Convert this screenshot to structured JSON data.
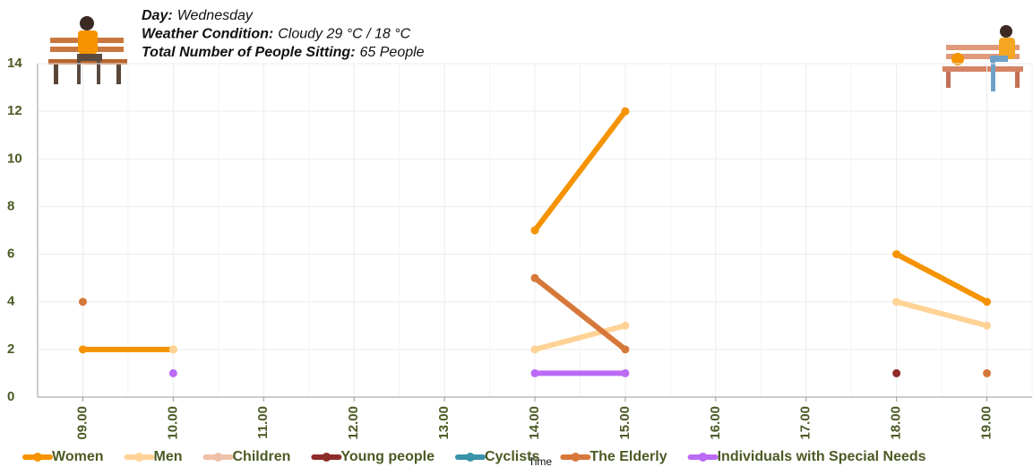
{
  "header": {
    "lines": [
      {
        "label": "Day:",
        "value": "Wednesday"
      },
      {
        "label": "Weather Condition:",
        "value": "Cloudy 29 °C / 18 °C"
      },
      {
        "label": "Total Number of People Sitting:",
        "value": "65 People"
      }
    ]
  },
  "chart_data": {
    "type": "line",
    "x_label": "Time",
    "categories": [
      "09.00",
      "10.00",
      "11.00",
      "12.00",
      "13.00",
      "14.00",
      "15.00",
      "16.00",
      "17.00",
      "18.00",
      "19.00"
    ],
    "ylim": [
      0,
      14
    ],
    "yticks": [
      0,
      2,
      4,
      6,
      8,
      10,
      12,
      14
    ],
    "grid": true,
    "series": [
      {
        "name": "Women",
        "color": "#f59300",
        "values": [
          2,
          2,
          null,
          null,
          null,
          7,
          12,
          null,
          null,
          6,
          4
        ]
      },
      {
        "name": "Men",
        "color": "#ffd396",
        "values": [
          null,
          2,
          null,
          null,
          null,
          2,
          3,
          null,
          null,
          4,
          3
        ]
      },
      {
        "name": "Children",
        "color": "#efc1a8",
        "values": [
          null,
          null,
          null,
          null,
          null,
          null,
          null,
          null,
          null,
          null,
          null
        ]
      },
      {
        "name": "Young people",
        "color": "#8e2c2a",
        "values": [
          null,
          null,
          null,
          null,
          null,
          null,
          null,
          null,
          null,
          1,
          null
        ]
      },
      {
        "name": "Cyclists",
        "color": "#3a93a8",
        "values": [
          null,
          null,
          null,
          null,
          null,
          null,
          null,
          null,
          null,
          null,
          null
        ]
      },
      {
        "name": "The Elderly",
        "color": "#d6783a",
        "values": [
          4,
          null,
          null,
          null,
          null,
          5,
          2,
          null,
          null,
          null,
          1
        ]
      },
      {
        "name": "Individuals with Special Needs",
        "color": "#bb6af5",
        "values": [
          null,
          1,
          null,
          null,
          null,
          1,
          1,
          null,
          null,
          null,
          null
        ]
      }
    ]
  }
}
